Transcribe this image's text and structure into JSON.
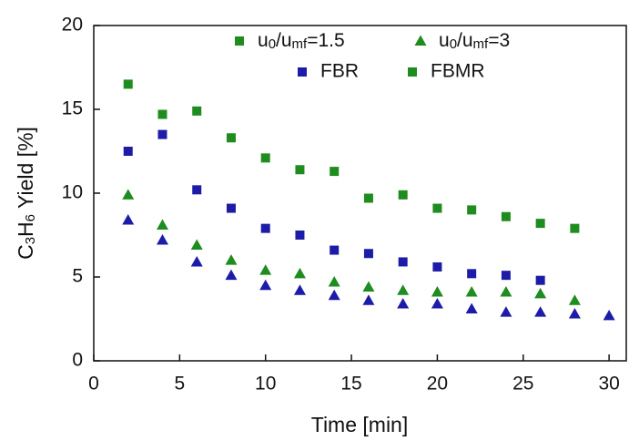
{
  "chart_data": {
    "type": "scatter",
    "x_label": "Time [min]",
    "y_label_parts": [
      "C",
      "3",
      "H",
      "6",
      " Yield [%]"
    ],
    "xlim": [
      0,
      31
    ],
    "xticks": [
      0,
      5,
      10,
      15,
      20,
      25,
      30
    ],
    "ylim": [
      0,
      20
    ],
    "yticks": [
      0,
      5,
      10,
      15,
      20
    ],
    "legend": {
      "shapes": [
        {
          "marker": "square",
          "color": "#1e8c1e",
          "label_parts": [
            "u",
            "0",
            "/u",
            "mf",
            "=1.5"
          ]
        },
        {
          "marker": "triangle",
          "color": "#1e8c1e",
          "label_parts": [
            "u",
            "0",
            "/u",
            "mf",
            "=3"
          ]
        }
      ],
      "colors": [
        {
          "marker": "square",
          "color": "#1c1ca8",
          "label": "FBR"
        },
        {
          "marker": "square",
          "color": "#1e8c1e",
          "label": "FBMR"
        }
      ]
    },
    "series": [
      {
        "marker": "square",
        "color": "#1e8c1e",
        "x": [
          2,
          4,
          6,
          8,
          10,
          12,
          14,
          16,
          18,
          20,
          22,
          24,
          26,
          28
        ],
        "values": [
          16.5,
          14.7,
          14.9,
          13.3,
          12.1,
          11.4,
          11.3,
          9.7,
          9.9,
          9.1,
          9.0,
          8.6,
          8.2,
          7.9
        ]
      },
      {
        "marker": "square",
        "color": "#1c1ca8",
        "x": [
          2,
          4,
          6,
          8,
          10,
          12,
          14,
          16,
          18,
          20,
          22,
          24,
          26
        ],
        "values": [
          12.5,
          13.5,
          10.2,
          9.1,
          7.9,
          7.5,
          6.6,
          6.4,
          5.9,
          5.6,
          5.2,
          5.1,
          4.8
        ]
      },
      {
        "marker": "triangle",
        "color": "#1e8c1e",
        "x": [
          2,
          4,
          6,
          8,
          10,
          12,
          14,
          16,
          18,
          20,
          22,
          24,
          26,
          28
        ],
        "values": [
          9.9,
          8.1,
          6.9,
          6.0,
          5.4,
          5.2,
          4.7,
          4.4,
          4.2,
          4.1,
          4.1,
          4.1,
          4.0,
          3.6
        ]
      },
      {
        "marker": "triangle",
        "color": "#1c1ca8",
        "x": [
          2,
          4,
          6,
          8,
          10,
          12,
          14,
          16,
          18,
          20,
          22,
          24,
          26,
          28,
          30
        ],
        "values": [
          8.4,
          7.2,
          5.9,
          5.1,
          4.5,
          4.2,
          3.9,
          3.6,
          3.4,
          3.4,
          3.1,
          2.9,
          2.9,
          2.8,
          2.7
        ]
      }
    ]
  }
}
